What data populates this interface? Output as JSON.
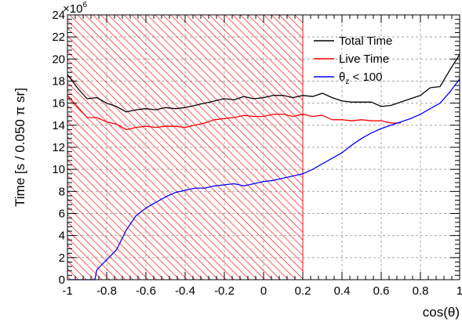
{
  "chart_data": {
    "type": "line",
    "title": "",
    "xlabel": "cos(θ)",
    "ylabel": "Time [s / 0.050 π sr]",
    "y_multiplier_label": "×10",
    "y_multiplier_exponent": "6",
    "xlim": [
      -1,
      1
    ],
    "ylim": [
      0,
      24
    ],
    "x_ticks": [
      -1,
      -0.8,
      -0.6,
      -0.4,
      -0.2,
      0,
      0.2,
      0.4,
      0.6,
      0.8,
      1
    ],
    "x_tick_labels": [
      "-1",
      "-0.8",
      "-0.6",
      "-0.4",
      "-0.2",
      "0",
      "0.2",
      "0.4",
      "0.6",
      "0.8",
      "1"
    ],
    "y_ticks": [
      0,
      2,
      4,
      6,
      8,
      10,
      12,
      14,
      16,
      18,
      20,
      22,
      24
    ],
    "y_tick_labels": [
      "0",
      "2",
      "4",
      "6",
      "8",
      "10",
      "12",
      "14",
      "16",
      "18",
      "20",
      "22",
      "24"
    ],
    "grid": true,
    "legend_position": "top-right",
    "shaded_region": {
      "x_range": [
        -1,
        0.2
      ],
      "color": "#ff0000",
      "pattern": "diagonal hatch"
    },
    "series": [
      {
        "name": "Total Time",
        "color": "#000000",
        "x": [
          -1.0,
          -0.95,
          -0.9,
          -0.85,
          -0.8,
          -0.75,
          -0.7,
          -0.65,
          -0.6,
          -0.55,
          -0.5,
          -0.45,
          -0.4,
          -0.35,
          -0.3,
          -0.25,
          -0.2,
          -0.15,
          -0.1,
          -0.05,
          0.0,
          0.05,
          0.1,
          0.15,
          0.2,
          0.25,
          0.3,
          0.35,
          0.4,
          0.45,
          0.5,
          0.55,
          0.6,
          0.65,
          0.7,
          0.75,
          0.8,
          0.85,
          0.9,
          0.95,
          1.0
        ],
        "values": [
          18.6,
          17.4,
          16.4,
          16.5,
          16.0,
          15.7,
          15.2,
          15.4,
          15.5,
          15.4,
          15.6,
          15.5,
          15.6,
          15.8,
          16.0,
          16.2,
          16.4,
          16.3,
          16.6,
          16.4,
          16.5,
          16.7,
          16.7,
          16.5,
          16.7,
          16.6,
          16.9,
          16.5,
          16.2,
          16.1,
          16.1,
          16.1,
          15.7,
          15.8,
          16.1,
          16.4,
          16.7,
          17.4,
          17.5,
          19.0,
          20.4
        ]
      },
      {
        "name": "Live Time",
        "color": "#ff0000",
        "x": [
          -1.0,
          -0.95,
          -0.9,
          -0.85,
          -0.8,
          -0.75,
          -0.7,
          -0.65,
          -0.6,
          -0.55,
          -0.5,
          -0.45,
          -0.4,
          -0.35,
          -0.3,
          -0.25,
          -0.2,
          -0.15,
          -0.1,
          -0.05,
          0.0,
          0.05,
          0.1,
          0.15,
          0.2,
          0.25,
          0.3,
          0.35,
          0.4,
          0.45,
          0.5,
          0.55,
          0.6,
          0.65,
          0.7
        ],
        "values": [
          16.7,
          15.7,
          14.7,
          14.7,
          14.3,
          14.1,
          13.6,
          13.8,
          13.9,
          13.8,
          13.9,
          13.9,
          13.8,
          14.0,
          14.2,
          14.5,
          14.6,
          14.7,
          14.9,
          14.8,
          14.8,
          15.0,
          15.0,
          14.8,
          15.0,
          14.8,
          14.9,
          14.5,
          14.5,
          14.4,
          14.5,
          14.4,
          14.4,
          14.2,
          14.2
        ]
      },
      {
        "name": "θz < 100",
        "name_base": "θ",
        "name_sub": "z",
        "name_rest": " < 100",
        "color": "#0000ff",
        "x": [
          -1.0,
          -0.95,
          -0.9,
          -0.86,
          -0.85,
          -0.8,
          -0.75,
          -0.7,
          -0.65,
          -0.6,
          -0.55,
          -0.5,
          -0.45,
          -0.4,
          -0.35,
          -0.3,
          -0.25,
          -0.2,
          -0.15,
          -0.1,
          -0.05,
          0.0,
          0.05,
          0.1,
          0.15,
          0.2,
          0.25,
          0.3,
          0.35,
          0.4,
          0.45,
          0.5,
          0.55,
          0.6,
          0.65,
          0.7,
          0.75,
          0.8,
          0.85,
          0.9,
          0.95,
          1.0
        ],
        "values": [
          0.0,
          0.0,
          0.0,
          0.0,
          0.9,
          1.8,
          2.7,
          4.5,
          5.8,
          6.5,
          7.0,
          7.5,
          7.9,
          8.1,
          8.3,
          8.3,
          8.5,
          8.6,
          8.7,
          8.5,
          8.7,
          8.9,
          9.0,
          9.2,
          9.4,
          9.6,
          10.0,
          10.5,
          11.0,
          11.5,
          12.2,
          12.8,
          13.3,
          13.7,
          14.0,
          14.3,
          14.6,
          15.0,
          15.5,
          16.0,
          17.0,
          18.2
        ]
      }
    ]
  }
}
